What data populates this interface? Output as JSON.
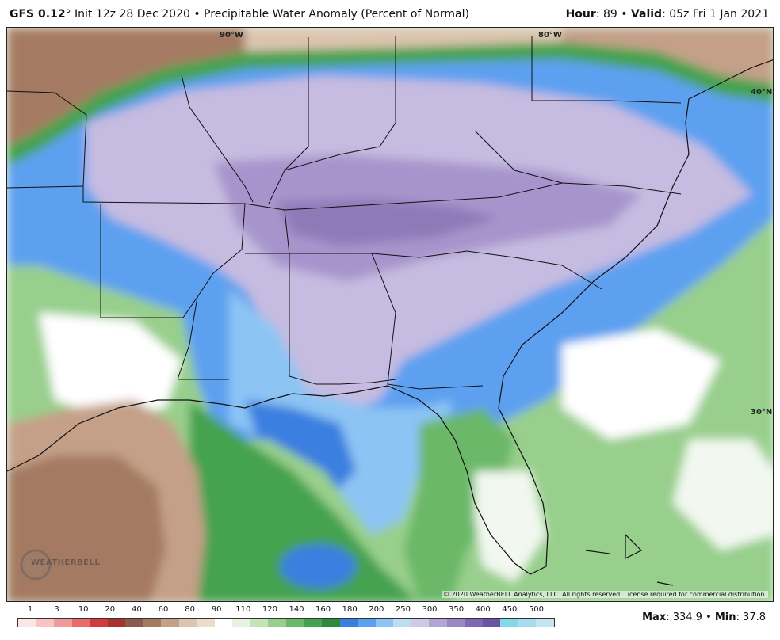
{
  "header": {
    "model": "GFS 0.12",
    "model_suffix": "° Init 12z 28 Dec 2020 • Precipitable Water Anomaly (Percent of Normal)",
    "hour_label": "Hour",
    "hour_value": ": 89 • ",
    "valid_label": "Valid",
    "valid_value": ": 05z Fri 1 Jan 2021"
  },
  "map": {
    "coords": {
      "lon_90": "90°W",
      "lon_80": "80°W",
      "lat_40": "40°N",
      "lat_30": "30°N"
    },
    "copyright": "© 2020 WeatherBELL Analytics, LLC. All rights reserved. License required for commercial distribution.",
    "logo_text": "WEATHERBELL"
  },
  "legend": {
    "labels": [
      "1",
      "3",
      "10",
      "20",
      "40",
      "60",
      "80",
      "90",
      "110",
      "120",
      "140",
      "160",
      "180",
      "200",
      "250",
      "300",
      "350",
      "400",
      "450",
      "500"
    ],
    "colors": [
      "#fde6e6",
      "#f9c3c3",
      "#f29a9a",
      "#e86a6a",
      "#d43a3a",
      "#a83232",
      "#8a5a4a",
      "#a57a62",
      "#c4a088",
      "#dcc4ae",
      "#ecdccb",
      "#ffffff",
      "#e6f2e0",
      "#c4e3b8",
      "#98cf8c",
      "#6ab868",
      "#45a250",
      "#2f8a40",
      "#3a7fe0",
      "#5da0f0",
      "#8cc4f4",
      "#bddcf6",
      "#cfc9e6",
      "#b3a6d6",
      "#9a88c6",
      "#7e68b4",
      "#6a55a4",
      "#84d8e8",
      "#a6dcec",
      "#c4e6f0"
    ]
  },
  "stats": {
    "max_label": "Max",
    "max_value": ": 334.9 • ",
    "min_label": "Min",
    "min_value": ": 37.8"
  }
}
